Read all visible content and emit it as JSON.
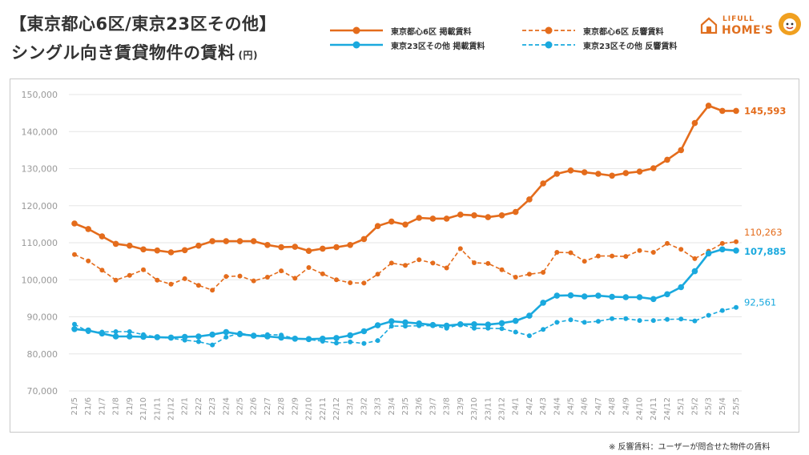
{
  "header": {
    "title_line1": "【東京都心6区/東京23区その他】",
    "title_line2": "シングル向き賃貸物件の賃料",
    "unit": "(円)"
  },
  "logo": {
    "line1": "LIFULL",
    "line2": "HOME'S"
  },
  "footnote": "※ 反響賃料：ユーザーが問合せた物件の賃料",
  "chart_data": {
    "type": "line",
    "categories": [
      "21/5",
      "21/6",
      "21/7",
      "21/8",
      "21/9",
      "21/10",
      "21/11",
      "21/12",
      "22/1",
      "22/2",
      "22/3",
      "22/4",
      "22/5",
      "22/6",
      "22/7",
      "22/8",
      "22/9",
      "22/10",
      "22/11",
      "22/12",
      "23/1",
      "23/2",
      "23/3",
      "23/4",
      "23/5",
      "23/6",
      "23/7",
      "23/8",
      "23/9",
      "23/10",
      "23/11",
      "23/12",
      "24/1",
      "24/2",
      "24/3",
      "24/4",
      "24/5",
      "24/6",
      "24/7",
      "24/8",
      "24/9",
      "24/10",
      "24/11",
      "24/12",
      "25/1",
      "25/2",
      "25/3",
      "25/4",
      "25/5"
    ],
    "y_ticks": [
      "70,000",
      "80,000",
      "90,000",
      "100,000",
      "110,000",
      "120,000",
      "130,000",
      "140,000",
      "150,000"
    ],
    "ylim": [
      70000,
      152000
    ],
    "grid": true,
    "series": [
      {
        "name": "東京都心6区 掲載賃料",
        "color": "#E46C1C",
        "style": "solid",
        "end_label": "145,593",
        "values": [
          115200,
          113700,
          111700,
          109700,
          109200,
          108200,
          107900,
          107400,
          108000,
          109200,
          110400,
          110400,
          110400,
          110400,
          109400,
          108800,
          108900,
          107800,
          108400,
          108800,
          109400,
          111000,
          114500,
          115700,
          114900,
          116700,
          116500,
          116500,
          117600,
          117400,
          116900,
          117400,
          118300,
          121700,
          126000,
          128600,
          129500,
          129000,
          128600,
          128100,
          128800,
          129200,
          130100,
          132400,
          135000,
          142300,
          147000,
          145600,
          145593
        ]
      },
      {
        "name": "東京都心6区 反響賃料",
        "color": "#E46C1C",
        "style": "dashed",
        "end_label": "110,263",
        "values": [
          106800,
          105100,
          102600,
          99900,
          101200,
          102700,
          99900,
          98800,
          100300,
          98500,
          97200,
          100900,
          101000,
          99700,
          100700,
          102400,
          100400,
          103300,
          101600,
          100000,
          99200,
          99100,
          101500,
          104500,
          103900,
          105400,
          104500,
          103200,
          108400,
          104600,
          104400,
          102700,
          100700,
          101500,
          102000,
          107400,
          107300,
          105000,
          106400,
          106400,
          106300,
          107900,
          107400,
          109800,
          108200,
          105700,
          107700,
          109800,
          110263
        ]
      },
      {
        "name": "東京23区その他 掲載賃料",
        "color": "#1AA9DE",
        "style": "solid",
        "end_label": "107,885",
        "values": [
          86700,
          86300,
          85500,
          84700,
          84700,
          84600,
          84500,
          84400,
          84600,
          84700,
          85200,
          85900,
          85300,
          84900,
          84700,
          84400,
          84100,
          84000,
          84100,
          84300,
          85000,
          86100,
          87700,
          88800,
          88500,
          88200,
          87800,
          87600,
          88000,
          88000,
          87900,
          88300,
          88900,
          90300,
          93800,
          95700,
          95800,
          95500,
          95700,
          95400,
          95300,
          95300,
          94800,
          96100,
          98000,
          102300,
          107100,
          108200,
          107885
        ]
      },
      {
        "name": "東京23区その他 反響賃料",
        "color": "#1AA9DE",
        "style": "dashed",
        "end_label": "92,561",
        "values": [
          88000,
          86000,
          85900,
          86000,
          86000,
          85200,
          84500,
          84200,
          83700,
          83300,
          82400,
          84500,
          85600,
          84900,
          85200,
          85100,
          84100,
          83900,
          83400,
          82900,
          83200,
          82800,
          83600,
          87500,
          87500,
          87600,
          87600,
          86900,
          88000,
          86900,
          86900,
          86800,
          85900,
          84900,
          86600,
          88500,
          89200,
          88500,
          88800,
          89500,
          89500,
          89000,
          89000,
          89300,
          89400,
          88900,
          90400,
          91700,
          92561
        ]
      }
    ]
  }
}
